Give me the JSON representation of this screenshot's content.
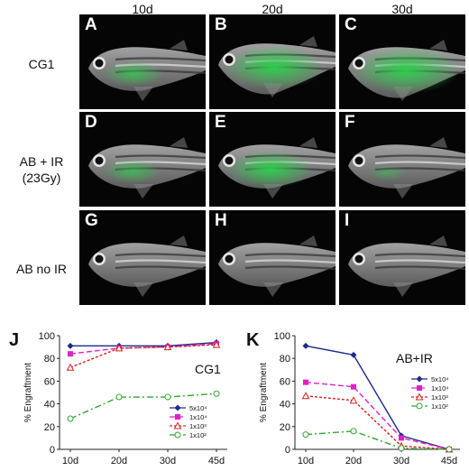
{
  "columns": [
    "10d",
    "20d",
    "30d"
  ],
  "rows": [
    {
      "label_lines": [
        "CG1"
      ]
    },
    {
      "label_lines": [
        "AB + IR",
        "(23Gy)"
      ]
    },
    {
      "label_lines": [
        "AB no IR"
      ]
    }
  ],
  "panels": [
    {
      "letter": "A",
      "glow": 0.35
    },
    {
      "letter": "B",
      "glow": 0.9
    },
    {
      "letter": "C",
      "glow": 1.0
    },
    {
      "letter": "D",
      "glow": 0.3
    },
    {
      "letter": "E",
      "glow": 0.7
    },
    {
      "letter": "F",
      "glow": 0.05
    },
    {
      "letter": "G",
      "glow": 0.0
    },
    {
      "letter": "H",
      "glow": 0.0
    },
    {
      "letter": "I",
      "glow": 0.0
    }
  ],
  "colors": {
    "navy": "#1f2a8a",
    "magenta": "#e020c8",
    "red": "#d42020",
    "green": "#2fa82f",
    "fluor": "#29d24a"
  },
  "chart_data": [
    {
      "letter": "J",
      "type": "line",
      "title": "CG1",
      "ylabel": "% Engraftment",
      "categories": [
        "10d",
        "20d",
        "30d",
        "45d"
      ],
      "ylim": [
        0,
        100
      ],
      "yticks": [
        "0",
        "20",
        "40",
        "60",
        "80",
        "100"
      ],
      "legend_position": "bottom-right",
      "series": [
        {
          "name": "5x10⁴",
          "values": [
            91,
            91,
            91,
            94
          ],
          "color": "#1f2a8a",
          "dash": "",
          "marker": "diamond"
        },
        {
          "name": "1x10⁴",
          "values": [
            84,
            89,
            90,
            93
          ],
          "color": "#e020c8",
          "dash": "6,3",
          "marker": "square"
        },
        {
          "name": "1x10³",
          "values": [
            72,
            89,
            90,
            92
          ],
          "color": "#d42020",
          "dash": "3,2",
          "marker": "triangle"
        },
        {
          "name": "1x10²",
          "values": [
            27,
            46,
            46,
            49
          ],
          "color": "#2fa82f",
          "dash": "7,3,2,3",
          "marker": "circle"
        }
      ]
    },
    {
      "letter": "K",
      "type": "line",
      "title": "AB+IR",
      "ylabel": "% Engraftment",
      "categories": [
        "10d",
        "20d",
        "30d",
        "45d"
      ],
      "ylim": [
        0,
        100
      ],
      "yticks": [
        "0",
        "20",
        "40",
        "60",
        "80",
        "100"
      ],
      "legend_position": "top-right",
      "series": [
        {
          "name": "5x10⁴",
          "values": [
            91,
            83,
            12,
            0
          ],
          "color": "#1f2a8a",
          "dash": "",
          "marker": "diamond"
        },
        {
          "name": "1x10⁴",
          "values": [
            59,
            55,
            10,
            0
          ],
          "color": "#e020c8",
          "dash": "6,3",
          "marker": "square"
        },
        {
          "name": "1x10³",
          "values": [
            47,
            43,
            3,
            0
          ],
          "color": "#d42020",
          "dash": "3,2",
          "marker": "triangle"
        },
        {
          "name": "1x10²",
          "values": [
            13,
            16,
            1,
            0
          ],
          "color": "#2fa82f",
          "dash": "7,3,2,3",
          "marker": "circle"
        }
      ]
    }
  ]
}
